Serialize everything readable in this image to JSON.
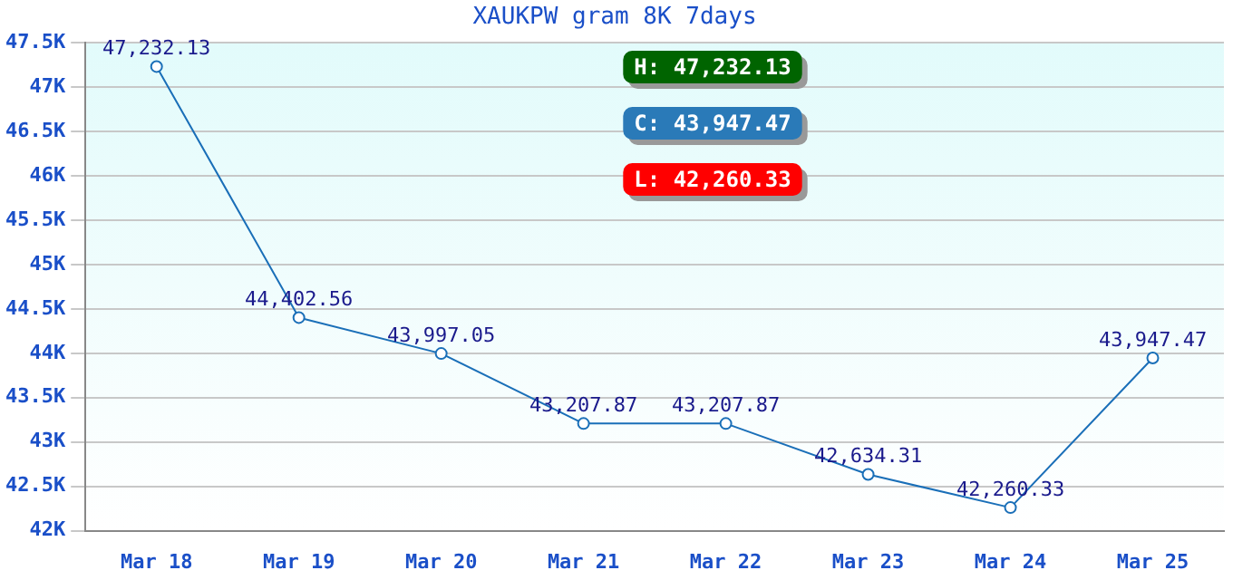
{
  "chart_data": {
    "type": "line",
    "title": "XAUKPW gram 8K 7days",
    "categories": [
      "Mar 18",
      "Mar 19",
      "Mar 20",
      "Mar 21",
      "Mar 22",
      "Mar 23",
      "Mar 24",
      "Mar 25"
    ],
    "series": [
      {
        "color": "#1a6fb8",
        "values": [
          47232.13,
          44402.56,
          43997.05,
          43207.87,
          43207.87,
          42634.31,
          42260.33,
          43947.47
        ],
        "value_labels": [
          "47,232.13",
          "44,402.56",
          "43,997.05",
          "43,207.87",
          "43,207.87",
          "42,634.31",
          "42,260.33",
          "43,947.47"
        ]
      }
    ],
    "ylim": [
      42000,
      47500
    ],
    "yticks": [
      {
        "value": 42000,
        "label": "42K"
      },
      {
        "value": 42500,
        "label": "42.5K"
      },
      {
        "value": 43000,
        "label": "43K"
      },
      {
        "value": 43500,
        "label": "43.5K"
      },
      {
        "value": 44000,
        "label": "44K"
      },
      {
        "value": 44500,
        "label": "44.5K"
      },
      {
        "value": 45000,
        "label": "45K"
      },
      {
        "value": 45500,
        "label": "45.5K"
      },
      {
        "value": 46000,
        "label": "46K"
      },
      {
        "value": 46500,
        "label": "46.5K"
      },
      {
        "value": 47000,
        "label": "47K"
      },
      {
        "value": 47500,
        "label": "47.5K"
      }
    ],
    "grid": "y",
    "legend": false,
    "marker": "circle",
    "line_style": "solid",
    "annotations": [
      "H: 47,232.13",
      "C: 43,947.47",
      "L: 42,260.33"
    ]
  }
}
